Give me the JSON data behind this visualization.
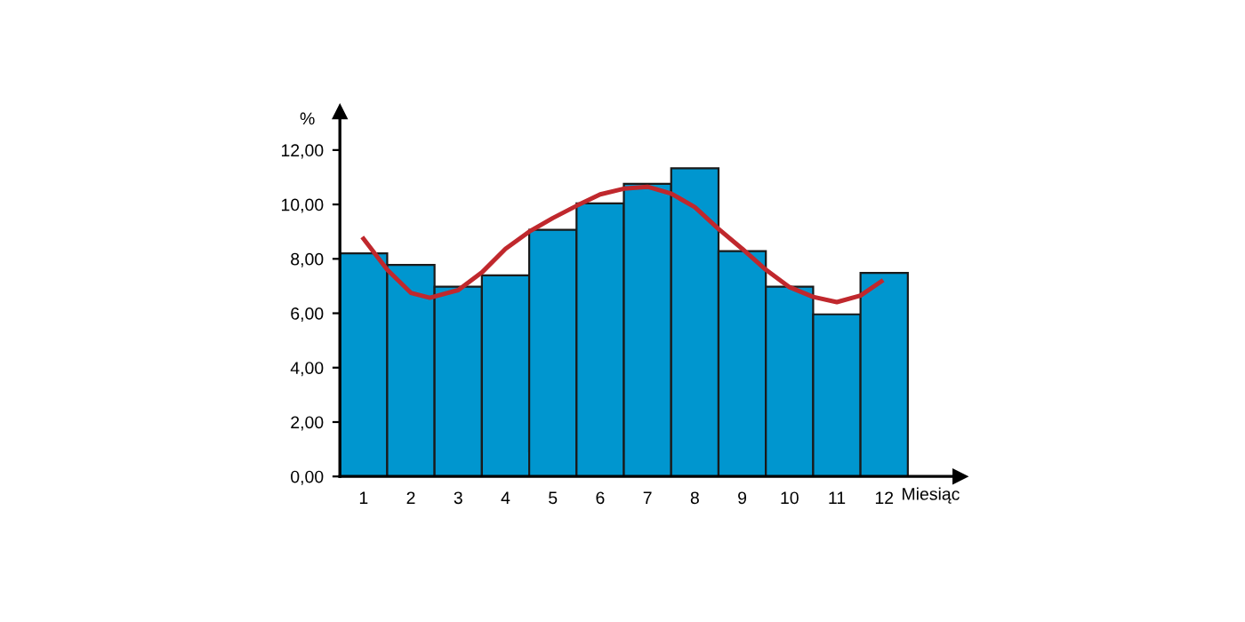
{
  "chart_data": {
    "type": "bar",
    "xlabel": "Miesiąc",
    "ylabel": "%",
    "x": [
      1,
      2,
      3,
      4,
      5,
      6,
      7,
      8,
      9,
      10,
      11,
      12
    ],
    "series": [
      {
        "color": "#0096cf",
        "values": [
          8.2,
          7.78,
          6.98,
          7.39,
          9.07,
          10.04,
          10.76,
          11.33,
          8.28,
          6.98,
          5.96,
          7.48
        ]
      },
      {
        "type": "line",
        "color": "#c0282d",
        "x": [
          1,
          1.5,
          2,
          2.4,
          3,
          3.5,
          4,
          4.5,
          5,
          5.5,
          6,
          6.5,
          7,
          7.5,
          8,
          8.5,
          9,
          9.5,
          10,
          10.5,
          11,
          11.5,
          11.94
        ],
        "values": [
          8.74,
          7.6,
          6.75,
          6.57,
          6.85,
          7.5,
          8.37,
          9.0,
          9.5,
          9.95,
          10.37,
          10.58,
          10.65,
          10.4,
          9.9,
          9.1,
          8.37,
          7.6,
          6.96,
          6.6,
          6.41,
          6.65,
          7.17
        ]
      }
    ],
    "xlim": [
      0.5,
      13.6
    ],
    "xticks": [
      1,
      2,
      3,
      4,
      5,
      6,
      7,
      8,
      9,
      10,
      11,
      12
    ],
    "ylim": [
      0,
      13.4
    ],
    "yticks": [
      {
        "value": 0,
        "label": "0,00"
      },
      {
        "value": 2,
        "label": "2,00"
      },
      {
        "value": 4,
        "label": "4,00"
      },
      {
        "value": 6,
        "label": "6,00"
      },
      {
        "value": 8,
        "label": "8,00"
      },
      {
        "value": 10,
        "label": "10,00"
      },
      {
        "value": 12,
        "label": "12,00"
      }
    ],
    "grid": false,
    "legend": false
  }
}
